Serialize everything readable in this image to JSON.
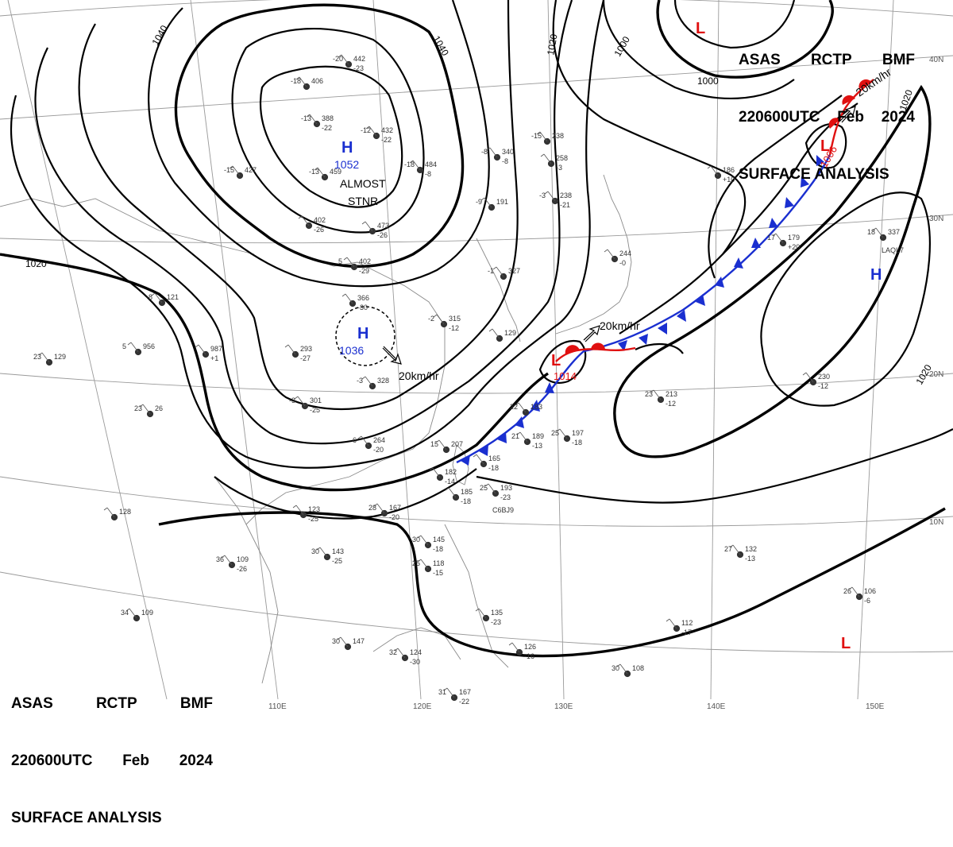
{
  "header_top": {
    "line1": [
      "ASAS",
      "RCTP",
      "BMF"
    ],
    "line2": [
      "220600UTC",
      "Feb",
      "2024"
    ],
    "line3": "SURFACE ANALYSIS"
  },
  "header_bottom": {
    "line1": [
      "ASAS",
      "RCTP",
      "BMF"
    ],
    "line2": [
      "220600UTC",
      "Feb",
      "2024"
    ],
    "line3": "SURFACE ANALYSIS"
  },
  "longitude_labels": [
    "110E",
    "120E",
    "130E",
    "140E",
    "150E"
  ],
  "latitude_labels": [
    "40N",
    "30N",
    "20N",
    "10N"
  ],
  "isobar_labels": [
    "1040",
    "1040",
    "1020",
    "1020",
    "1000",
    "1000",
    "1020",
    "1020"
  ],
  "pressure_centers": {
    "high_1": {
      "symbol": "H",
      "value": "1052",
      "note_1": "ALMOST",
      "note_2": "STNR"
    },
    "high_2": {
      "symbol": "H",
      "value": "1036",
      "speed": "20km/hr"
    },
    "high_3": {
      "symbol": "H"
    },
    "low_1": {
      "symbol": "L",
      "value": "1014",
      "speed": "20km/hr"
    },
    "low_2": {
      "symbol": "L",
      "value": "1006",
      "speed": "20km/hr"
    },
    "low_3": {
      "symbol": "L"
    },
    "low_4": {
      "symbol": "L"
    }
  },
  "stations": [
    {
      "t": "-20",
      "p": "442",
      "d": "-23"
    },
    {
      "t": "-18",
      "p": "406",
      "d": ""
    },
    {
      "t": "-13",
      "p": "388",
      "d": "-22"
    },
    {
      "t": "-12",
      "p": "432",
      "d": "-22"
    },
    {
      "t": "-15",
      "p": "427",
      "d": ""
    },
    {
      "t": "-13",
      "p": "459",
      "d": ""
    },
    {
      "t": "-18",
      "p": "484",
      "d": "-8"
    },
    {
      "t": "-8",
      "p": "340",
      "d": "-8"
    },
    {
      "t": "-15",
      "p": "238",
      "d": ""
    },
    {
      "t": "-9",
      "p": "191",
      "d": ""
    },
    {
      "t": "-3",
      "p": "238",
      "d": "-21"
    },
    {
      "t": "",
      "p": "402",
      "d": "-26"
    },
    {
      "t": "",
      "p": "473",
      "d": "-26"
    },
    {
      "t": "5",
      "p": "402",
      "d": "-29"
    },
    {
      "t": "",
      "p": "366",
      "d": "-30"
    },
    {
      "t": "-1",
      "p": "327",
      "d": ""
    },
    {
      "t": "-2",
      "p": "315",
      "d": "-12"
    },
    {
      "t": "-3",
      "p": "328",
      "d": ""
    },
    {
      "t": "-3",
      "p": "301",
      "d": "-25"
    },
    {
      "t": "",
      "p": "293",
      "d": "-27"
    },
    {
      "t": "5",
      "p": "956",
      "d": ""
    },
    {
      "t": "",
      "p": "987",
      "d": "+1"
    },
    {
      "t": "-8",
      "p": "121",
      "d": ""
    },
    {
      "t": "23",
      "p": "129",
      "d": ""
    },
    {
      "t": "23",
      "p": "26",
      "d": ""
    },
    {
      "t": "6",
      "p": "264",
      "d": "-20"
    },
    {
      "t": "15",
      "p": "207",
      "d": ""
    },
    {
      "t": "22",
      "p": "183",
      "d": ""
    },
    {
      "t": "21",
      "p": "189",
      "d": "-13"
    },
    {
      "t": "25",
      "p": "197",
      "d": "-18"
    },
    {
      "t": "",
      "p": "165",
      "d": "-18"
    },
    {
      "t": "",
      "p": "182",
      "d": "-14"
    },
    {
      "t": "",
      "p": "185",
      "d": "-18"
    },
    {
      "t": "25",
      "p": "193",
      "d": "-23"
    },
    {
      "t": "28",
      "p": "167",
      "d": "-20"
    },
    {
      "t": "",
      "p": "123",
      "d": "-25"
    },
    {
      "t": "",
      "p": "128",
      "d": ""
    },
    {
      "t": "36",
      "p": "109",
      "d": "-26"
    },
    {
      "t": "30",
      "p": "143",
      "d": "-25"
    },
    {
      "t": "30",
      "p": "145",
      "d": "-18"
    },
    {
      "t": "25",
      "p": "118",
      "d": "-15"
    },
    {
      "t": "34",
      "p": "109",
      "d": ""
    },
    {
      "t": "30",
      "p": "147",
      "d": ""
    },
    {
      "t": "32",
      "p": "124",
      "d": "-30"
    },
    {
      "t": "",
      "p": "135",
      "d": "-23"
    },
    {
      "t": "",
      "p": "126",
      "d": "-16"
    },
    {
      "t": "31",
      "p": "167",
      "d": "-22"
    },
    {
      "t": "30",
      "p": "108",
      "d": ""
    },
    {
      "t": "",
      "p": "112",
      "d": "-17"
    },
    {
      "t": "27",
      "p": "132",
      "d": "-13"
    },
    {
      "t": "26",
      "p": "106",
      "d": "-6"
    },
    {
      "t": "23",
      "p": "213",
      "d": "-12"
    },
    {
      "t": "",
      "p": "230",
      "d": "-12"
    },
    {
      "t": "18",
      "p": "337",
      "d": ""
    },
    {
      "t": "17",
      "p": "179",
      "d": "+20"
    },
    {
      "t": "",
      "p": "186",
      "d": "+10"
    },
    {
      "t": "",
      "p": "244",
      "d": "-0"
    },
    {
      "t": "",
      "p": "258",
      "d": "-3"
    },
    {
      "t": "",
      "p": "129",
      "d": ""
    }
  ],
  "ship_ids": [
    "LAQL7",
    "C6BJ9"
  ]
}
